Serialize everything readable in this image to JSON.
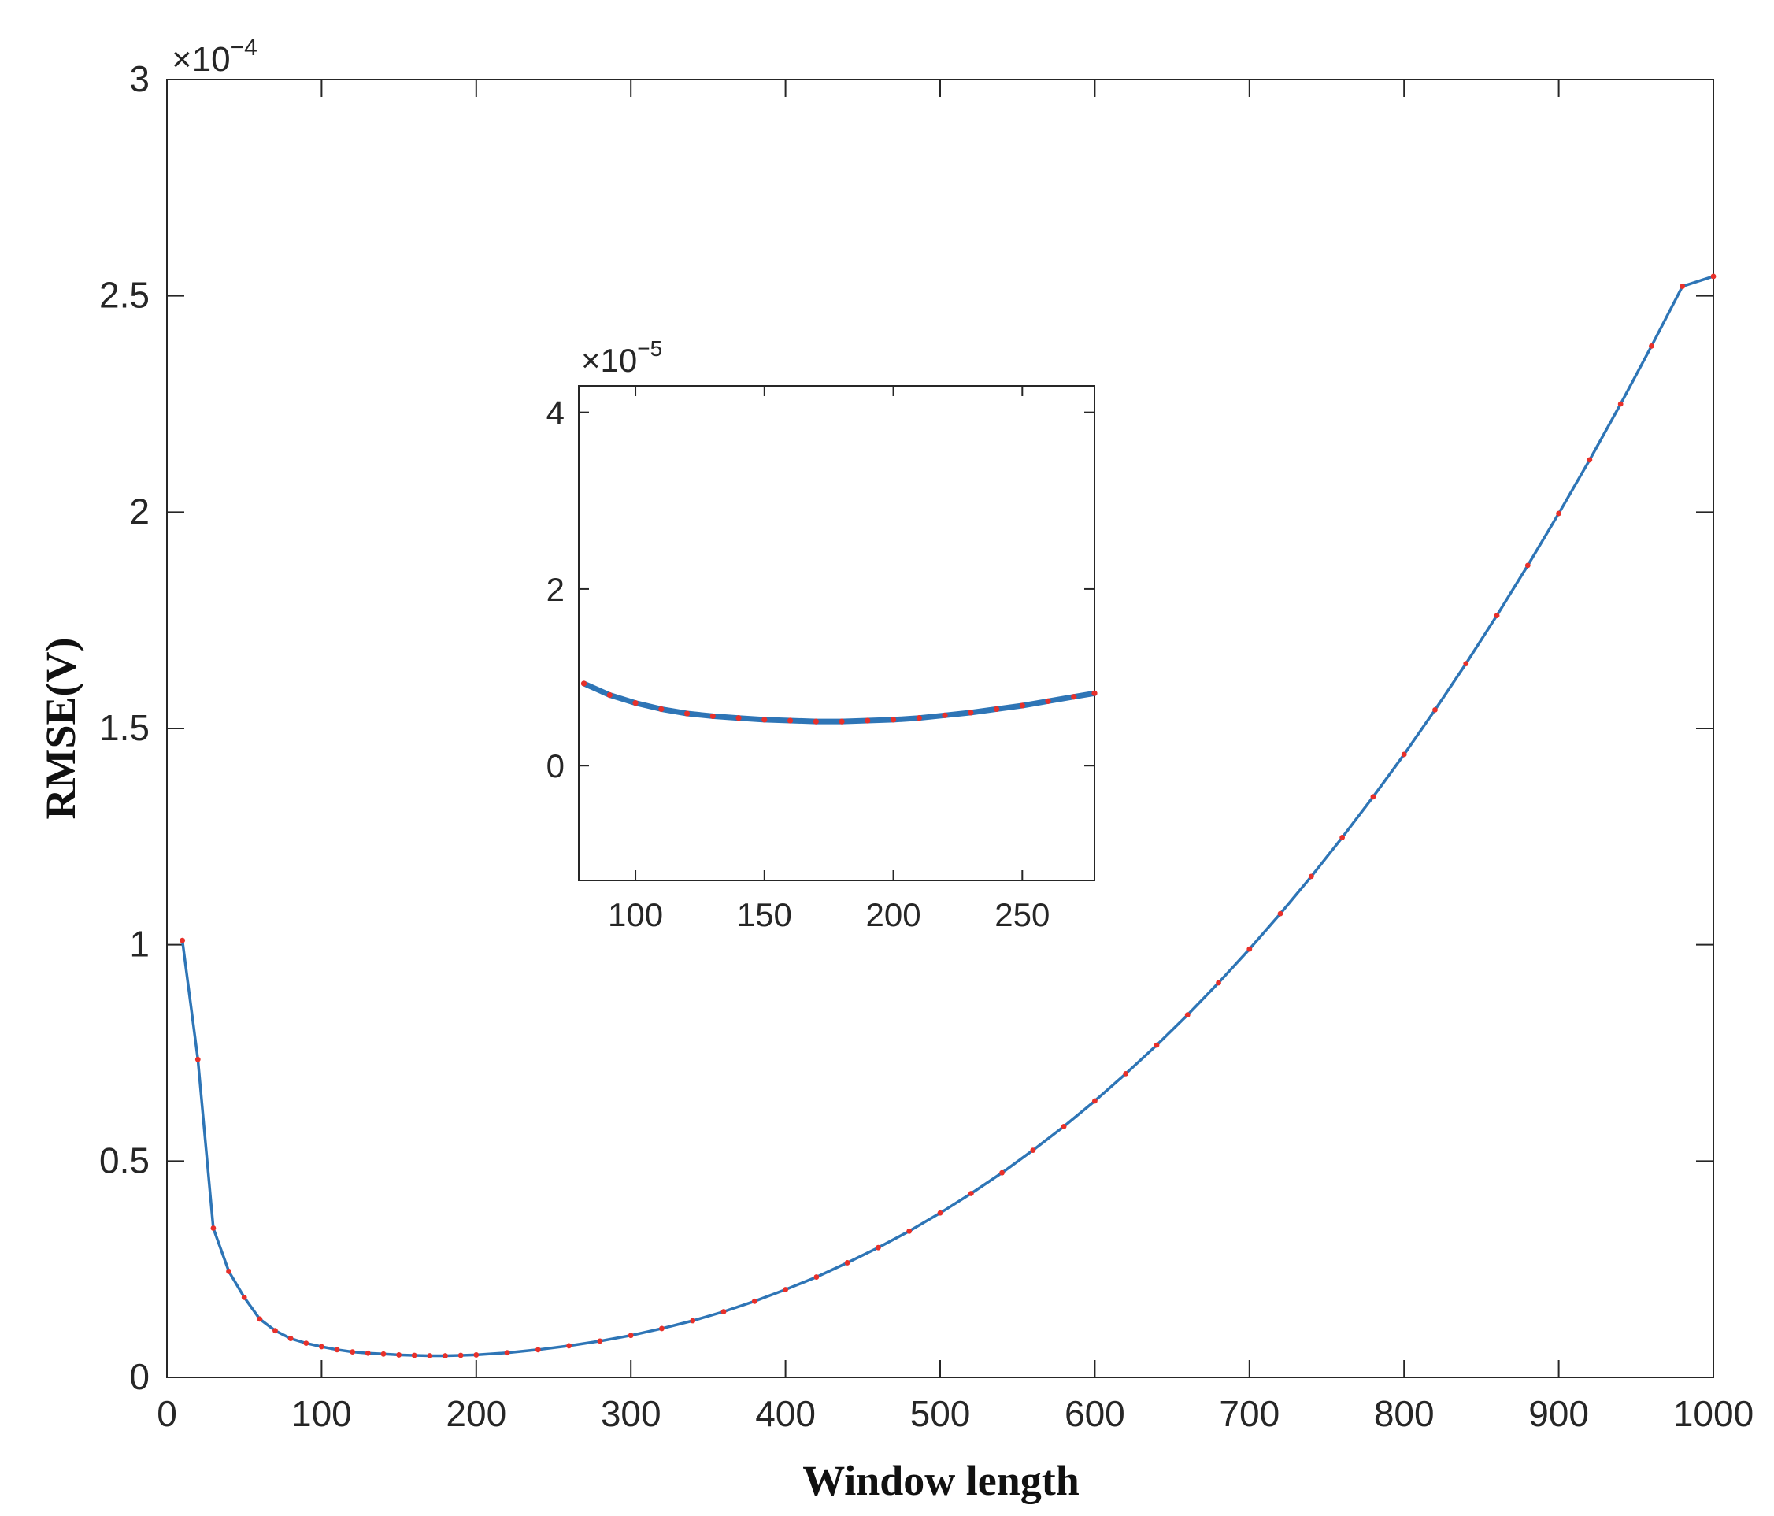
{
  "chart_data": [
    {
      "type": "line",
      "title": "",
      "xlabel": "Window length",
      "ylabel": "RMSE(V)",
      "y_exponent_label": "×10^-4",
      "x_ticks": [
        "0",
        "100",
        "200",
        "300",
        "400",
        "500",
        "600",
        "700",
        "800",
        "900",
        "1000"
      ],
      "y_ticks": [
        "0",
        "0.5",
        "1",
        "1.5",
        "2",
        "2.5",
        "3"
      ],
      "xlim": [
        0,
        1000
      ],
      "ylim": [
        0,
        3
      ],
      "y_scale_factor": 0.0001,
      "grid": false,
      "line_color": "#2E75B6",
      "marker_color": "#E8302A",
      "series": [
        {
          "x": [
            10,
            20,
            30,
            40,
            50,
            60,
            70,
            80,
            90,
            100,
            110,
            120,
            130,
            140,
            150,
            160,
            170,
            180,
            190,
            200,
            220,
            240,
            260,
            280,
            300,
            320,
            340,
            360,
            380,
            400,
            420,
            440,
            460,
            480,
            500,
            520,
            540,
            560,
            580,
            600,
            620,
            640,
            660,
            680,
            700,
            720,
            740,
            760,
            780,
            800,
            820,
            840,
            860,
            880,
            900,
            920,
            940,
            960,
            980,
            1000
          ],
          "y": [
            1.01,
            0.735,
            0.345,
            0.245,
            0.185,
            0.135,
            0.108,
            0.09,
            0.079,
            0.071,
            0.064,
            0.059,
            0.056,
            0.054,
            0.052,
            0.051,
            0.05,
            0.05,
            0.051,
            0.052,
            0.057,
            0.064,
            0.073,
            0.084,
            0.097,
            0.113,
            0.131,
            0.152,
            0.176,
            0.203,
            0.232,
            0.265,
            0.3,
            0.338,
            0.38,
            0.425,
            0.473,
            0.525,
            0.58,
            0.639,
            0.702,
            0.768,
            0.838,
            0.912,
            0.99,
            1.072,
            1.158,
            1.248,
            1.342,
            1.44,
            1.543,
            1.65,
            1.761,
            1.877,
            1.997,
            2.121,
            2.25,
            2.384,
            2.522,
            2.545
          ]
        }
      ]
    },
    {
      "type": "line",
      "title": "",
      "xlabel": "",
      "ylabel": "",
      "y_exponent_label": "×10^-5",
      "x_ticks": [
        "100",
        "150",
        "200",
        "250"
      ],
      "y_ticks": [
        "0",
        "2",
        "4"
      ],
      "xlim": [
        78,
        278
      ],
      "ylim": [
        -1.3,
        4.3
      ],
      "y_scale_factor": 1e-05,
      "grid": false,
      "line_color": "#2E75B6",
      "marker_color": "#E8302A",
      "series": [
        {
          "x": [
            80,
            90,
            100,
            110,
            120,
            130,
            140,
            150,
            160,
            170,
            180,
            190,
            200,
            210,
            220,
            230,
            240,
            250,
            260,
            270,
            278
          ],
          "y": [
            0.93,
            0.8,
            0.71,
            0.64,
            0.59,
            0.56,
            0.54,
            0.52,
            0.51,
            0.5,
            0.5,
            0.51,
            0.52,
            0.54,
            0.57,
            0.6,
            0.64,
            0.68,
            0.73,
            0.78,
            0.82
          ]
        }
      ]
    }
  ]
}
